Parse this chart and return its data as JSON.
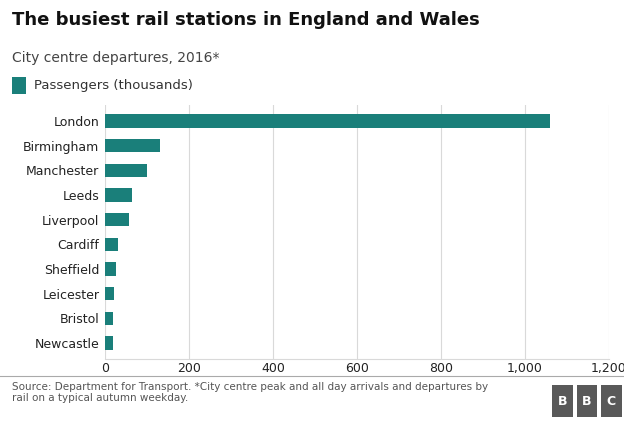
{
  "title": "The busiest rail stations in England and Wales",
  "subtitle": "City centre departures, 2016*",
  "legend_label": "Passengers (thousands)",
  "categories": [
    "London",
    "Birmingham",
    "Manchester",
    "Leeds",
    "Liverpool",
    "Cardiff",
    "Sheffield",
    "Leicester",
    "Bristol",
    "Newcastle"
  ],
  "values": [
    1060,
    130,
    100,
    65,
    58,
    30,
    25,
    22,
    20,
    18
  ],
  "bar_color": "#1a7f7a",
  "xlim": [
    0,
    1200
  ],
  "xticks": [
    0,
    200,
    400,
    600,
    800,
    1000,
    1200
  ],
  "xtick_labels": [
    "0",
    "200",
    "400",
    "600",
    "800",
    "1,000",
    "1,200"
  ],
  "source_text": "Source: Department for Transport. *City centre peak and all day arrivals and departures by\nrail on a typical autumn weekday.",
  "background_color": "#ffffff",
  "grid_color": "#d9d9d9",
  "title_fontsize": 13,
  "subtitle_fontsize": 10,
  "legend_fontsize": 9.5,
  "tick_fontsize": 9,
  "source_fontsize": 7.5,
  "bar_height": 0.55
}
